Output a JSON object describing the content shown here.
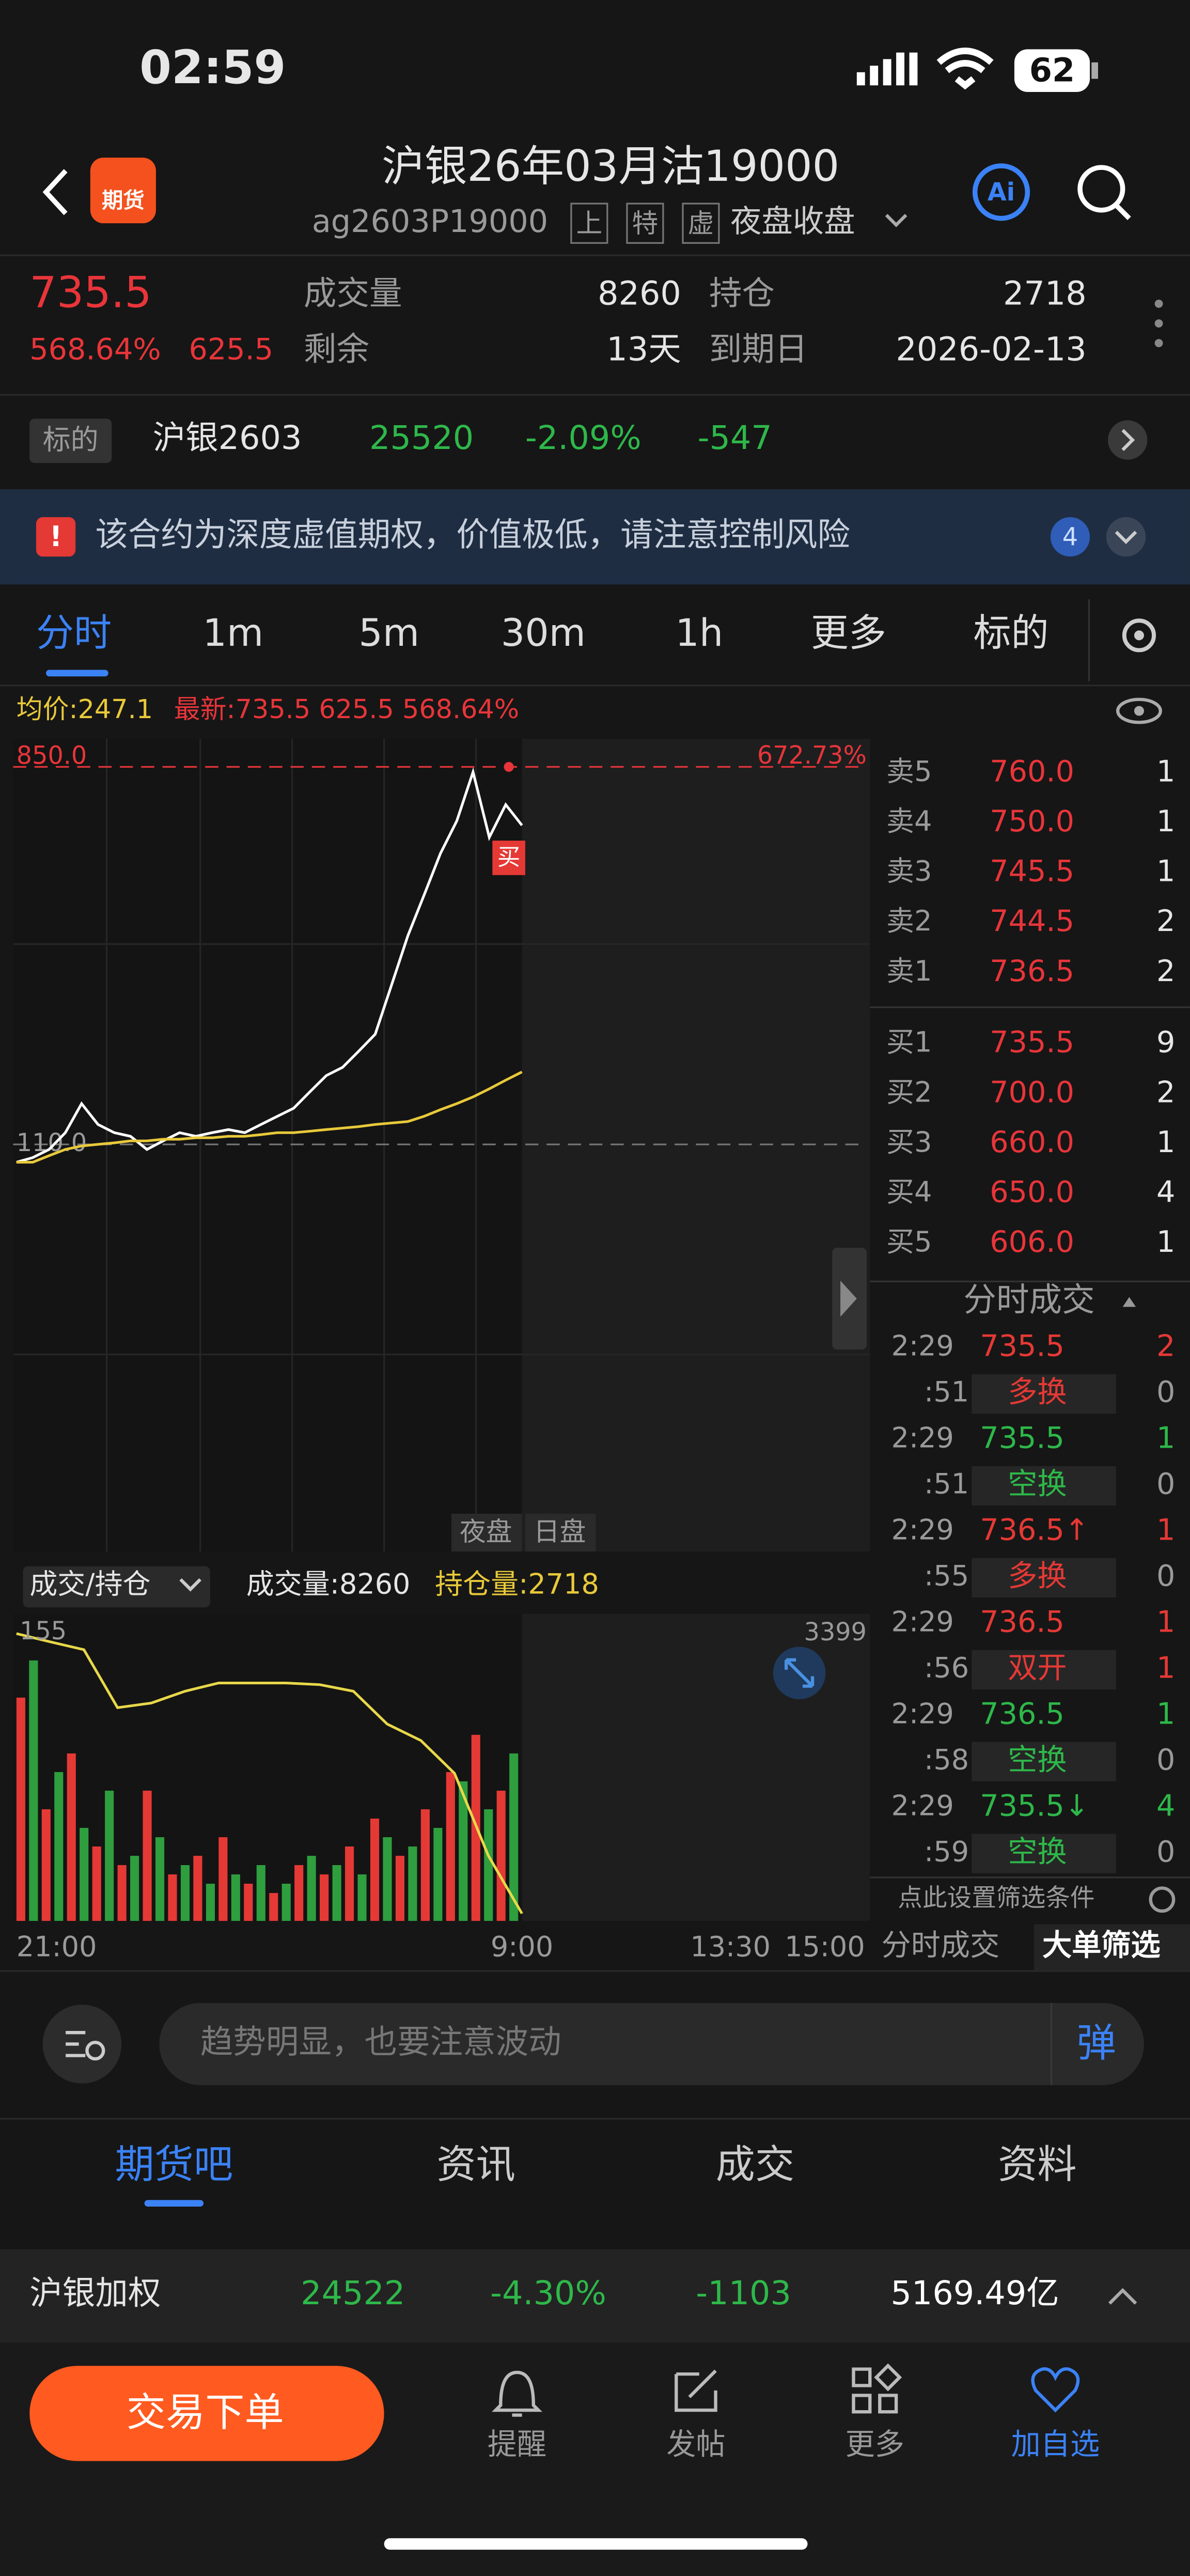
{
  "status": {
    "time": "02:59",
    "battery": "62"
  },
  "header": {
    "badge": "期货",
    "title": "沪银26年03月沽19000",
    "code": "ag2603P19000",
    "tags": [
      "上",
      "特",
      "虚"
    ],
    "session": "夜盘收盘"
  },
  "quote": {
    "price": "735.5",
    "change_pct": "568.64%",
    "change": "625.5",
    "volume_label": "成交量",
    "volume": "8260",
    "oi_label": "持仓",
    "oi": "2718",
    "remain_label": "剩余",
    "remain": "13天",
    "expiry_label": "到期日",
    "expiry": "2026-02-13"
  },
  "underlying": {
    "label": "标的",
    "name": "沪银2603",
    "price": "25520",
    "pct": "-2.09%",
    "change": "-547"
  },
  "warning": {
    "text": "该合约为深度虚值期权，价值极低，请注意控制风险",
    "count": "4"
  },
  "tabs": [
    "分时",
    "1m",
    "5m",
    "30m",
    "1h",
    "更多",
    "标的"
  ],
  "info": {
    "avg": "均价:247.1",
    "latest": "最新:735.5 625.5 568.64%"
  },
  "intraday": {
    "type": "line",
    "ylim": [
      -688,
      905
    ],
    "yticks": [
      {
        "value": 850,
        "label": "850.0"
      },
      {
        "value": 110,
        "label": "110.0"
      }
    ],
    "top_pct": "672.73%",
    "trade_marker": "买",
    "sessions": [
      "夜盘",
      "日盘"
    ],
    "series": [
      {
        "color": "#ffffff",
        "values": [
          75,
          84,
          100,
          133,
          190,
          149,
          133,
          126,
          100,
          117,
          133,
          126,
          133,
          139,
          133,
          149,
          165,
          181,
          213,
          245,
          261,
          293,
          326,
          422,
          519,
          599,
          680,
          744,
          840,
          712,
          776,
          735.5
        ]
      },
      {
        "color": "#e8c93a",
        "values": [
          75,
          75,
          88,
          100,
          107,
          110,
          113,
          117,
          117,
          120,
          120,
          123,
          123,
          126,
          126,
          129,
          133,
          133,
          136,
          139,
          142,
          145,
          149,
          152,
          155,
          165,
          178,
          190,
          203,
          219,
          236,
          252
        ]
      }
    ]
  },
  "volume": {
    "type": "bar",
    "selector": "成交/持仓",
    "vol": "成交量:8260",
    "oi": "持仓量:2718",
    "ylim": [
      0,
      165
    ],
    "yticks": [
      155
    ],
    "y2lim": [
      2700,
      3447
    ],
    "y2ticks": [
      3399
    ],
    "series": [
      {
        "color": "#e53935",
        "values": [
          120,
          60,
          90,
          40,
          30,
          70,
          25,
          35,
          45,
          20,
          15,
          30,
          25,
          40,
          55,
          35,
          60,
          80,
          100,
          70
        ]
      },
      {
        "color": "#2e9e3e",
        "values": [
          140,
          80,
          50,
          70,
          35,
          45,
          30,
          20,
          25,
          30,
          20,
          35,
          30,
          25,
          45,
          40,
          50,
          75,
          60,
          90
        ]
      },
      {
        "color": "#e8d84a",
        "axis": "y2",
        "values": [
          3399,
          3379,
          3360,
          3219,
          3230,
          3259,
          3279,
          3279,
          3279,
          3275,
          3259,
          3179,
          3139,
          3059,
          2859,
          2718
        ]
      }
    ],
    "xticks": [
      "21:00",
      "9:00",
      "13:30",
      "15:00"
    ]
  },
  "orderbook": {
    "asks": [
      [
        "卖5",
        "760.0",
        "1"
      ],
      [
        "卖4",
        "750.0",
        "1"
      ],
      [
        "卖3",
        "745.5",
        "1"
      ],
      [
        "卖2",
        "744.5",
        "2"
      ],
      [
        "卖1",
        "736.5",
        "2"
      ]
    ],
    "bids": [
      [
        "买1",
        "735.5",
        "9"
      ],
      [
        "买2",
        "700.0",
        "2"
      ],
      [
        "买3",
        "660.0",
        "1"
      ],
      [
        "买4",
        "650.0",
        "4"
      ],
      [
        "买5",
        "606.0",
        "1"
      ]
    ]
  },
  "trades": {
    "title": "分时成交",
    "rows": [
      [
        "2:29",
        "735.5",
        "2",
        "#e53935"
      ],
      [
        ":51",
        "多换",
        "0",
        "#e53935"
      ],
      [
        "2:29",
        "735.5",
        "1",
        "#2eb84a"
      ],
      [
        ":51",
        "空换",
        "0",
        "#2eb84a"
      ],
      [
        "2:29",
        "736.5↑",
        "1",
        "#e53935"
      ],
      [
        ":55",
        "多换",
        "0",
        "#e53935"
      ],
      [
        "2:29",
        "736.5",
        "1",
        "#e53935"
      ],
      [
        ":56",
        "双开",
        "1",
        "#e53935"
      ],
      [
        "2:29",
        "736.5",
        "1",
        "#2eb84a"
      ],
      [
        ":58",
        "空换",
        "0",
        "#2eb84a"
      ],
      [
        "2:29",
        "735.5↓",
        "4",
        "#2eb84a"
      ],
      [
        ":59",
        "空换",
        "0",
        "#2eb84a"
      ]
    ],
    "filter": "点此设置筛选条件",
    "tabs": [
      "分时成交",
      "大单筛选"
    ]
  },
  "comment": {
    "placeholder": "趋势明显，也要注意波动",
    "danmaku": "弹"
  },
  "sections": [
    "期货吧",
    "资讯",
    "成交",
    "资料"
  ],
  "index": {
    "name": "沪银加权",
    "price": "24522",
    "pct": "-4.30%",
    "change": "-1103",
    "amount": "5169.49亿"
  },
  "toolbar": {
    "trade": "交易下单",
    "items": [
      "提醒",
      "发帖",
      "更多",
      "加自选"
    ]
  }
}
